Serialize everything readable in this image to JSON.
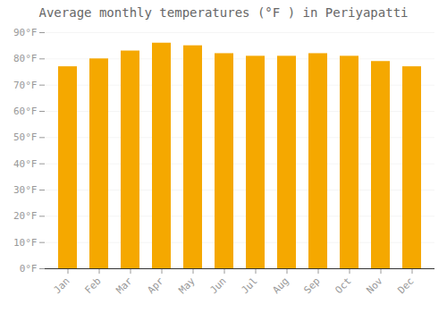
{
  "chart_data": {
    "type": "bar",
    "title": "Average monthly temperatures (°F ) in Periyapatti",
    "categories": [
      "Jan",
      "Feb",
      "Mar",
      "Apr",
      "May",
      "Jun",
      "Jul",
      "Aug",
      "Sep",
      "Oct",
      "Nov",
      "Dec"
    ],
    "values": [
      77,
      80,
      83,
      86,
      85,
      82,
      81,
      81,
      82,
      81,
      79,
      77
    ],
    "color": "#F5A800",
    "ylim": [
      0,
      90
    ],
    "yticks": [
      {
        "value": 0,
        "label": "0°F"
      },
      {
        "value": 10,
        "label": "10°F"
      },
      {
        "value": 20,
        "label": "20°F"
      },
      {
        "value": 30,
        "label": "30°F"
      },
      {
        "value": 40,
        "label": "40°F"
      },
      {
        "value": 50,
        "label": "50°F"
      },
      {
        "value": 60,
        "label": "60°F"
      },
      {
        "value": 70,
        "label": "70°F"
      },
      {
        "value": 80,
        "label": "80°F"
      },
      {
        "value": 90,
        "label": "90°F"
      }
    ],
    "grid": true
  }
}
